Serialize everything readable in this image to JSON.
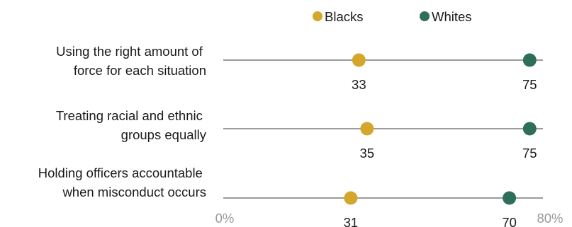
{
  "colors": {
    "blacks": "#d4a72c",
    "whites": "#2e6e5b",
    "axis": "#9b9b9b",
    "text": "#1a1a1a",
    "tick_text": "#9a9a9a"
  },
  "chart_data": {
    "type": "scatter",
    "subtype": "dot-plot",
    "title": "",
    "xlabel": "",
    "ylabel": "",
    "xlim": [
      0,
      80
    ],
    "x_ticks": [
      "0%",
      "80%"
    ],
    "legend": {
      "placement": "top",
      "entries": [
        "Blacks",
        "Whites"
      ]
    },
    "categories": [
      [
        "Using the right amount of",
        "force for each situation"
      ],
      [
        "Treating racial and ethnic",
        "groups equally"
      ],
      [
        "Holding officers accountable",
        "when misconduct occurs"
      ]
    ],
    "series": [
      {
        "name": "Blacks",
        "values": [
          33,
          35,
          31
        ]
      },
      {
        "name": "Whites",
        "values": [
          75,
          75,
          70
        ]
      }
    ]
  }
}
